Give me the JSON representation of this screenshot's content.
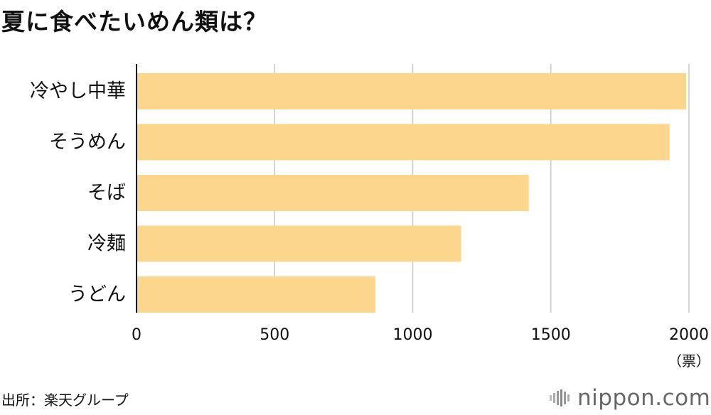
{
  "title": "夏に食べたいめん類は？",
  "source": "出所：楽天グループ",
  "logo": {
    "text": "nippon.com",
    "icon": "nippon-com-logo-icon"
  },
  "chart_data": {
    "type": "bar",
    "orientation": "horizontal",
    "title": "夏に食べたいめん類は？",
    "categories": [
      "冷やし中華",
      "そうめん",
      "そば",
      "冷麺",
      "うどん"
    ],
    "values": [
      1990,
      1930,
      1420,
      1175,
      865
    ],
    "unit_label": "（票）",
    "xlim": [
      0,
      2000
    ],
    "xticks": [
      0,
      500,
      1000,
      1500,
      2000
    ],
    "grid": true,
    "bar_color": "#fdd68e",
    "grid_color": "#c8c8c8",
    "axis_color": "#000000"
  }
}
